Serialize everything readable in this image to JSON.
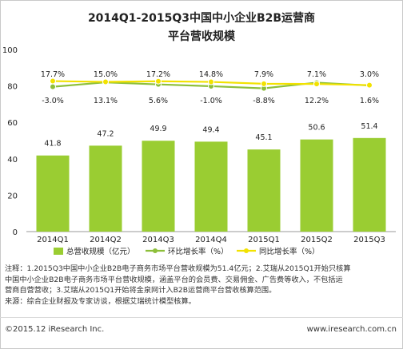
{
  "title_line1": "2014Q1-2015Q3中国中小企业B2B运营商",
  "title_line2": "平台营收规模",
  "notes": {
    "line1": "注释：1.2015Q3中国中小企业B2B电子商务市场平台营收规模为51.4亿元；2.艾瑞从2015Q1开始只核算",
    "line2": "中国中小企业B2B电子商务市场平台营收规模，涵盖平台的会员费、交易佣金、广告费等收入，不包括运",
    "line3": "营商自营营收；3.艾瑞从2015Q1开始将金泉网计入B2B运营商平台营收核算范围。",
    "line4": "来源：综合企业财报及专家访谈，根据艾瑞统计模型核算。"
  },
  "footer": {
    "copyright": "©2015.12 iResearch Inc.",
    "website": "www.iresearch.com.cn"
  },
  "chart_data": {
    "type": "bar",
    "categories": [
      "2014Q1",
      "2014Q2",
      "2014Q3",
      "2014Q4",
      "2015Q1",
      "2015Q2",
      "2015Q3"
    ],
    "ylim": [
      0,
      100
    ],
    "yticks": [
      0,
      20,
      40,
      60,
      80,
      100
    ],
    "grid": false,
    "legend_position": "bottom",
    "bar_color": "#9ACD32",
    "bar_series": {
      "name": "总营收规模（亿元）",
      "values": [
        41.8,
        47.2,
        49.9,
        49.4,
        45.1,
        50.6,
        51.4
      ],
      "labels": [
        "41.8",
        "47.2",
        "49.9",
        "49.4",
        "45.1",
        "50.6",
        "51.4"
      ]
    },
    "rate_series": [
      {
        "name": "环比增长率（%）",
        "color": "#8DBF3A",
        "values": [
          -3.0,
          13.1,
          5.6,
          -1.0,
          -8.8,
          12.2,
          1.6
        ],
        "labels": [
          "-3.0%",
          "13.1%",
          "5.6%",
          "-1.0%",
          "-8.8%",
          "12.2%",
          "1.6%"
        ]
      },
      {
        "name": "同比增长率（%）",
        "color": "#F2E200",
        "values": [
          17.7,
          15.0,
          17.2,
          14.8,
          7.9,
          7.1,
          3.0
        ],
        "labels": [
          "17.7%",
          "15.0%",
          "17.2%",
          "14.8%",
          "7.9%",
          "7.1%",
          "3.0%"
        ]
      }
    ]
  }
}
